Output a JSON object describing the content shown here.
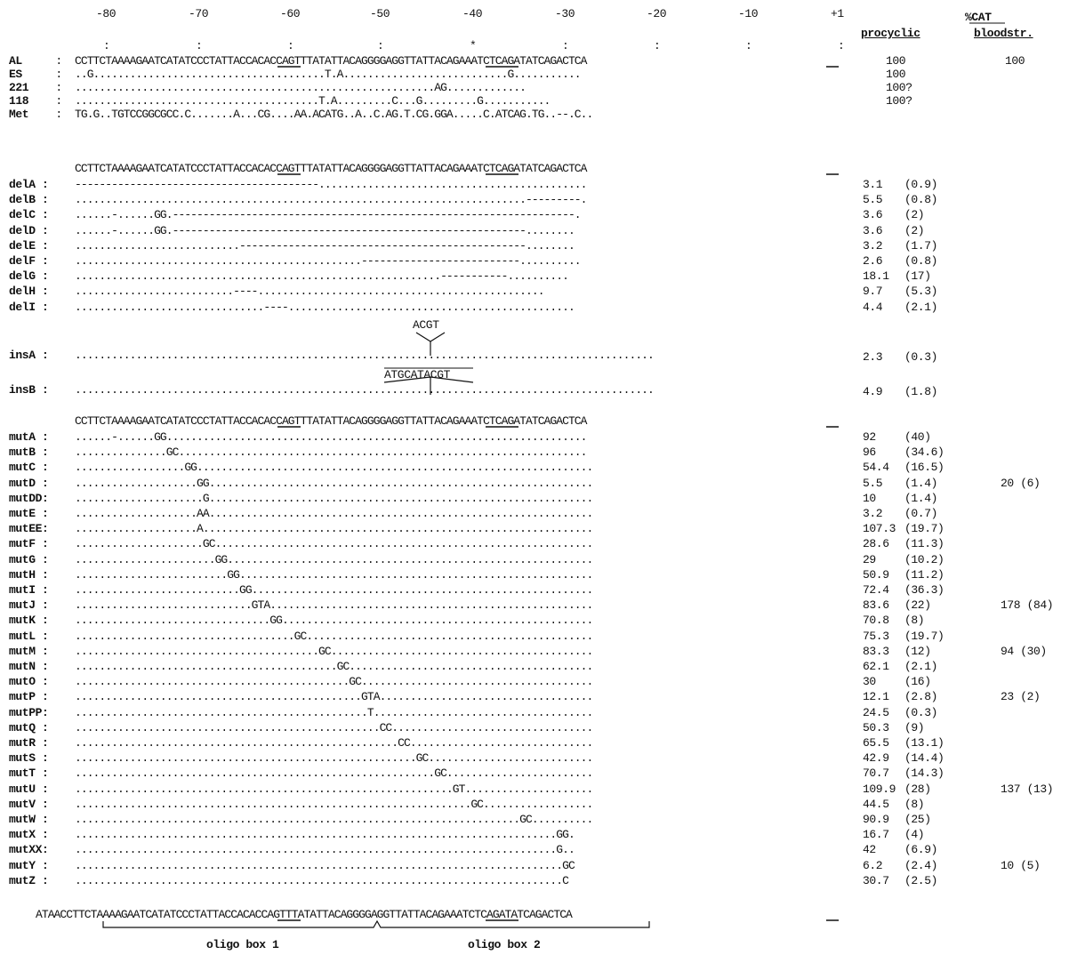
{
  "axis": {
    "ticks": [
      "-80",
      "-70",
      "-60",
      "-50",
      "-40",
      "-30",
      "-20",
      "-10",
      "+1"
    ],
    "colon_marker": ":",
    "star_marker": "*"
  },
  "header": {
    "title": "%CAT",
    "procyclic": "procyclic",
    "bloodstream": "bloodstr."
  },
  "ref_sequence": "CCTTCTAAAAGAATCATATCCCTATTACCACACCAGTTTATATTACAGGGGAGGTTATTACAGAAATCTCAGATATCAGACTCA",
  "section_headers": [
    "CCTTCTAAAAGAATCATATCCCTATTACCACACCAGTTTATATTACAGGGGAGGTTATTACAGAAATCTCAGATATCAGACTCA",
    "CCTTCTAAAAGAATCATATCCCTATTACCACACCAGTTTATATTACAGGGGAGGTTATTACAGAAATCTCAGATATCAGACTCA"
  ],
  "strains": [
    {
      "label": "AL",
      "sep": " :",
      "seq": "CCTTCTAAAAGAATCATATCCCTATTACCACACCAGTTTATATTACAGGGGAGGTTATTACAGAAATCTCAGATATCAGACTCA",
      "proc": "100",
      "blood": "100"
    },
    {
      "label": "ES",
      "sep": " :",
      "seq": "..G......................................T.A...........................G...........",
      "proc": "100",
      "blood": ""
    },
    {
      "label": "221",
      "sep": " :",
      "seq": "...........................................................AG.............",
      "proc": "100?",
      "blood": ""
    },
    {
      "label": "118",
      "sep": " :",
      "seq": "........................................T.A.........C...G.........G...........",
      "proc": "100?",
      "blood": ""
    },
    {
      "label": "Met",
      "sep": " :",
      "seq": "TG.G..TGTCCGGCGCC.C.......A...CG....AA.ACATG..A..C.AG.T.CG.GGA.....C.ATCAG.TG..--.C..",
      "proc": "",
      "blood": ""
    }
  ],
  "deletions": [
    {
      "label": "delA :",
      "seq": "----------------------------------------............................................",
      "proc": "3.1",
      "proc_sd": "(0.9)"
    },
    {
      "label": "delB :",
      "seq": "..........................................................................---------.",
      "proc": "5.5",
      "proc_sd": "(0.8)"
    },
    {
      "label": "delC :",
      "seq": "......-......GG.------------------------------------------------------------------.",
      "proc": "3.6",
      "proc_sd": "(2)"
    },
    {
      "label": "delD :",
      "seq": "......-......GG.----------------------------------------------------------........",
      "proc": "3.6",
      "proc_sd": "(2)"
    },
    {
      "label": "delE :",
      "seq": "...........................-----------------------------------------------........",
      "proc": "3.2",
      "proc_sd": "(1.7)"
    },
    {
      "label": "delF :",
      "seq": "...............................................--------------------------..........",
      "proc": "2.6",
      "proc_sd": "(0.8)"
    },
    {
      "label": "delG :",
      "seq": "............................................................-----------..........",
      "proc": "18.1",
      "proc_sd": "(17)"
    },
    {
      "label": "delH :",
      "seq": "..........................----...............................................",
      "proc": "9.7",
      "proc_sd": "(5.3)"
    },
    {
      "label": "delI :",
      "seq": "...............................----...............................................",
      "proc": "4.4",
      "proc_sd": "(2.1)"
    }
  ],
  "insertions": [
    {
      "label": "insA :",
      "insert": "ACGT",
      "proc": "2.3",
      "proc_sd": "(0.3)"
    },
    {
      "label": "insB :",
      "insert": "ATGCATACGT",
      "proc": "4.9",
      "proc_sd": "(1.8)"
    }
  ],
  "mutations": [
    {
      "label": "mutA :",
      "seq": "......-......GG.....................................................................",
      "proc": "92",
      "proc_sd": "(40)",
      "blood": ""
    },
    {
      "label": "mutB :",
      "seq": "...............GC...................................................................",
      "proc": "96",
      "proc_sd": "(34.6)",
      "blood": ""
    },
    {
      "label": "mutC :",
      "seq": "..................GG.................................................................",
      "proc": "54.4",
      "proc_sd": "(16.5)",
      "blood": ""
    },
    {
      "label": "mutD :",
      "seq": "....................GG...............................................................",
      "proc": "5.5",
      "proc_sd": "(1.4)",
      "blood": "20 (6)"
    },
    {
      "label": "mutDD:",
      "seq": ".....................G...............................................................",
      "proc": "10",
      "proc_sd": "(1.4)",
      "blood": ""
    },
    {
      "label": "mutE :",
      "seq": "....................AA...............................................................",
      "proc": "3.2",
      "proc_sd": "(0.7)",
      "blood": ""
    },
    {
      "label": "mutEE:",
      "seq": "....................A................................................................",
      "proc": "107.3",
      "proc_sd": "(19.7)",
      "blood": ""
    },
    {
      "label": "mutF :",
      "seq": ".....................GC..............................................................",
      "proc": "28.6",
      "proc_sd": "(11.3)",
      "blood": ""
    },
    {
      "label": "mutG :",
      "seq": ".......................GG............................................................",
      "proc": "29",
      "proc_sd": "(10.2)",
      "blood": ""
    },
    {
      "label": "mutH :",
      "seq": ".........................GG..........................................................",
      "proc": "50.9",
      "proc_sd": "(11.2)",
      "blood": ""
    },
    {
      "label": "mutI :",
      "seq": "...........................GG........................................................",
      "proc": "72.4",
      "proc_sd": "(36.3)",
      "blood": ""
    },
    {
      "label": "mutJ :",
      "seq": ".............................GTA.....................................................",
      "proc": "83.6",
      "proc_sd": "(22)",
      "blood": "178 (84)"
    },
    {
      "label": "mutK :",
      "seq": "................................GG...................................................",
      "proc": "70.8",
      "proc_sd": "(8)",
      "blood": ""
    },
    {
      "label": "mutL :",
      "seq": "....................................GC...............................................",
      "proc": "75.3",
      "proc_sd": "(19.7)",
      "blood": ""
    },
    {
      "label": "mutM :",
      "seq": "........................................GC...........................................",
      "proc": "83.3",
      "proc_sd": "(12)",
      "blood": "94 (30)"
    },
    {
      "label": "mutN :",
      "seq": "...........................................GC........................................",
      "proc": "62.1",
      "proc_sd": "(2.1)",
      "blood": ""
    },
    {
      "label": "mutO :",
      "seq": ".............................................GC......................................",
      "proc": "30",
      "proc_sd": "(16)",
      "blood": ""
    },
    {
      "label": "mutP :",
      "seq": "...............................................GTA...................................",
      "proc": "12.1",
      "proc_sd": "(2.8)",
      "blood": "23 (2)"
    },
    {
      "label": "mutPP:",
      "seq": "................................................T....................................",
      "proc": "24.5",
      "proc_sd": "(0.3)",
      "blood": ""
    },
    {
      "label": "mutQ :",
      "seq": "..................................................CC.................................",
      "proc": "50.3",
      "proc_sd": "(9)",
      "blood": ""
    },
    {
      "label": "mutR :",
      "seq": ".....................................................CC..............................",
      "proc": "65.5",
      "proc_sd": "(13.1)",
      "blood": ""
    },
    {
      "label": "mutS :",
      "seq": "........................................................GC...........................",
      "proc": "42.9",
      "proc_sd": "(14.4)",
      "blood": ""
    },
    {
      "label": "mutT :",
      "seq": "...........................................................GC........................",
      "proc": "70.7",
      "proc_sd": "(14.3)",
      "blood": ""
    },
    {
      "label": "mutU :",
      "seq": "..............................................................GT.....................",
      "proc": "109.9",
      "proc_sd": "(28)",
      "blood": "137 (13)"
    },
    {
      "label": "mutV :",
      "seq": ".................................................................GC..................",
      "proc": "44.5",
      "proc_sd": "(8)",
      "blood": ""
    },
    {
      "label": "mutW :",
      "seq": ".........................................................................GC..........",
      "proc": "90.9",
      "proc_sd": "(25)",
      "blood": ""
    },
    {
      "label": "mutX :",
      "seq": "...............................................................................GG.",
      "proc": "16.7",
      "proc_sd": "(4)",
      "blood": ""
    },
    {
      "label": "mutXX:",
      "seq": "...............................................................................G..",
      "proc": "42",
      "proc_sd": "(6.9)",
      "blood": ""
    },
    {
      "label": "mutY :",
      "seq": "................................................................................GC",
      "proc": "6.2",
      "proc_sd": "(2.4)",
      "blood": "10 (5)"
    },
    {
      "label": "mutZ :",
      "seq": "................................................................................C",
      "proc": "30.7",
      "proc_sd": "(2.5)",
      "blood": ""
    }
  ],
  "footer": {
    "sequence": "ATAACCTTCTAAAAGAATCATATCCCTATTACCACACCAGTTTATATTACAGGGGAGGTTATTACAGAAATCTCAGATATCAGACTCA",
    "box1": "oligo box 1",
    "box2": "oligo box 2"
  }
}
